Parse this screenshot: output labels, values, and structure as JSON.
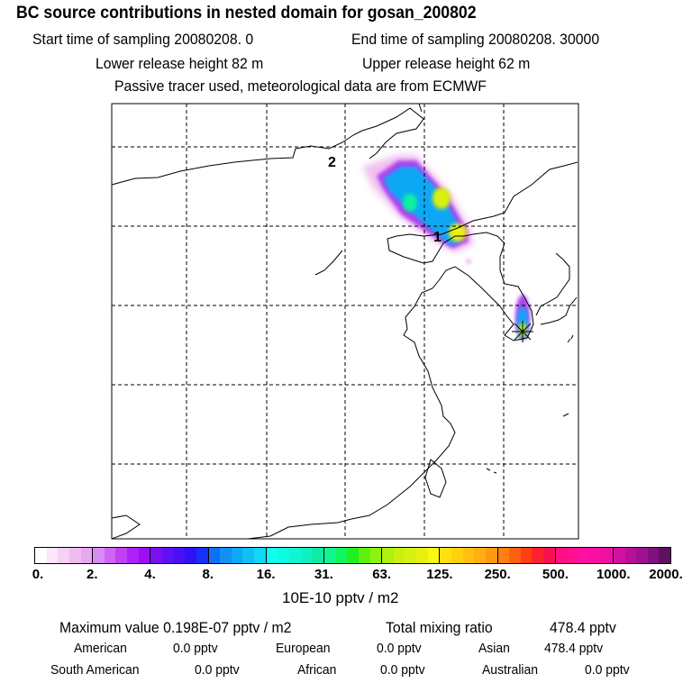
{
  "header": {
    "title": "BC  source contributions in nested domain for gosan_200802",
    "start_label": "Start time of sampling 20080208.     0",
    "end_label": "End time of sampling 20080208. 30000",
    "lower_release": "Lower release height   82 m",
    "upper_release": "Upper release height   62 m",
    "tracer_note": "Passive tracer used, meteorological data are from ECMWF"
  },
  "map": {
    "markers": [
      {
        "label": "1"
      },
      {
        "label": "2"
      }
    ],
    "receptor_icon": "star-burst"
  },
  "colorbar": {
    "tick_labels": [
      "0.",
      "2.",
      "4.",
      "8.",
      "16.",
      "31.",
      "63.",
      "125.",
      "250.",
      "500.",
      "1000.",
      "2000."
    ],
    "unit": "10E-10 pptv / m2",
    "segments": [
      [
        "#ffffff",
        "#fbe6fb",
        "#f6d0f6",
        "#f0bcf0",
        "#e8a8f0"
      ],
      [
        "#d98cf0",
        "#cc66f2",
        "#c040f5",
        "#b020f5",
        "#9a10f0"
      ],
      [
        "#7a10f0",
        "#6010f5",
        "#4a10f5",
        "#3010f5",
        "#1830f5"
      ],
      [
        "#1070f5",
        "#1090f5",
        "#10a8f5",
        "#10c0f5",
        "#10d8f5"
      ],
      [
        "#10fff0",
        "#10fae0",
        "#10f5d0",
        "#10f0c0",
        "#10eaa8"
      ],
      [
        "#10f590",
        "#10f560",
        "#20f020",
        "#60f010",
        "#90f010"
      ],
      [
        "#b0f010",
        "#c8f010",
        "#d8f010",
        "#e8f010",
        "#f8f810"
      ],
      [
        "#ffe010",
        "#ffd010",
        "#ffc010",
        "#ffb010",
        "#ff9a10"
      ],
      [
        "#ff8010",
        "#ff6010",
        "#ff4010",
        "#ff2030",
        "#f81050"
      ],
      [
        "#ff1080",
        "#ff1090",
        "#ff10a0",
        "#f810a0",
        "#f010a0"
      ],
      [
        "#d010a0",
        "#b81098",
        "#a01090",
        "#801080",
        "#601060"
      ]
    ]
  },
  "summary": {
    "max_label": "Maximum value  0.198E-07 pptv / m2",
    "total_label": "Total mixing ratio",
    "total_value": "478.4 pptv",
    "regions": [
      {
        "name": "American",
        "value": "0.0 pptv"
      },
      {
        "name": "European",
        "value": "0.0 pptv"
      },
      {
        "name": "Asian",
        "value": "478.4 pptv"
      },
      {
        "name": "South American",
        "value": "0.0 pptv"
      },
      {
        "name": "African",
        "value": "0.0 pptv"
      },
      {
        "name": "Australian",
        "value": "0.0 pptv"
      }
    ]
  }
}
